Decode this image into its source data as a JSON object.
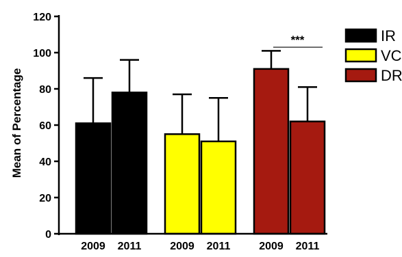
{
  "chart_data": {
    "type": "bar",
    "ylabel": "Mean of Percentage",
    "xlabel": "",
    "ylim": [
      0,
      120
    ],
    "yticks": [
      0,
      20,
      40,
      60,
      80,
      100,
      120
    ],
    "error_bars": "upper",
    "legend_placement": "right",
    "groups": [
      {
        "name": "IR",
        "color": "#000000",
        "bars": [
          {
            "category": "2009",
            "value": 61,
            "error_upper": 86
          },
          {
            "category": "2011",
            "value": 78,
            "error_upper": 96
          }
        ]
      },
      {
        "name": "VC",
        "color": "#ffff00",
        "bars": [
          {
            "category": "2009",
            "value": 55,
            "error_upper": 77
          },
          {
            "category": "2011",
            "value": 51,
            "error_upper": 75
          }
        ]
      },
      {
        "name": "DR",
        "color": "#a51a10",
        "bars": [
          {
            "category": "2009",
            "value": 91,
            "error_upper": 101
          },
          {
            "category": "2011",
            "value": 62,
            "error_upper": 81
          }
        ]
      }
    ],
    "annotations": [
      {
        "text": "***",
        "group": "DR",
        "between": [
          "2009",
          "2011"
        ],
        "y": 103
      }
    ]
  }
}
